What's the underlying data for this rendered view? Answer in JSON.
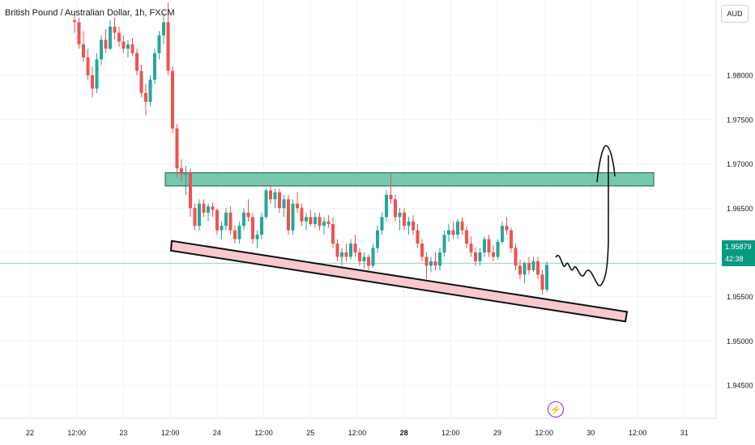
{
  "header": {
    "title": "British Pound / Australian Dollar, 1h, FXCM",
    "currency_button": "AUD"
  },
  "price_badge": {
    "price": "1.95879",
    "countdown": "42:38"
  },
  "event_icon": "lightning-icon",
  "colors": {
    "up": "#26a69a",
    "down": "#ef5350",
    "resistance_zone": "#76c7ad",
    "support_line": "#f8c8cf",
    "grid": "#f0f3fa",
    "price_line": "#089981"
  },
  "chart_data": {
    "type": "candlestick",
    "title": "British Pound / Australian Dollar, 1h, FXCM",
    "ylim": [
      1.941,
      1.9885
    ],
    "y_ticks": [
      "1.98000",
      "1.97500",
      "1.97000",
      "1.96500",
      "1.96000",
      "1.95500",
      "1.95000",
      "1.94500"
    ],
    "x_ticks": [
      "22",
      "12:00",
      "23",
      "12:00",
      "24",
      "12:00",
      "25",
      "12:00",
      "28",
      "12:00",
      "29",
      "12:00",
      "30",
      "12:00",
      "31"
    ],
    "current_price": 1.95879,
    "resistance_zone": [
      1.9675,
      1.969
    ],
    "support_line": {
      "start": 1.9613,
      "end": 1.9533
    },
    "projection": "bounce up to resistance zone",
    "candles": [
      [
        1.9862,
        1.9873,
        1.9848,
        1.986
      ],
      [
        1.986,
        1.9865,
        1.983,
        1.9835
      ],
      [
        1.9835,
        1.985,
        1.9815,
        1.982
      ],
      [
        1.982,
        1.983,
        1.9795,
        1.98
      ],
      [
        1.98,
        1.981,
        1.9775,
        1.9785
      ],
      [
        1.9785,
        1.9825,
        1.978,
        1.9818
      ],
      [
        1.9818,
        1.9845,
        1.9812,
        1.984
      ],
      [
        1.984,
        1.9852,
        1.9825,
        1.983
      ],
      [
        1.983,
        1.9862,
        1.9828,
        1.9855
      ],
      [
        1.9855,
        1.9865,
        1.984,
        1.9848
      ],
      [
        1.9848,
        1.9855,
        1.9832,
        1.9838
      ],
      [
        1.9838,
        1.9845,
        1.9825,
        1.983
      ],
      [
        1.983,
        1.984,
        1.982,
        1.9835
      ],
      [
        1.9835,
        1.9842,
        1.9822,
        1.9825
      ],
      [
        1.9825,
        1.983,
        1.98,
        1.9805
      ],
      [
        1.9805,
        1.9812,
        1.9775,
        1.978
      ],
      [
        1.978,
        1.979,
        1.9755,
        1.977
      ],
      [
        1.977,
        1.98,
        1.9765,
        1.9795
      ],
      [
        1.9795,
        1.983,
        1.979,
        1.9825
      ],
      [
        1.9825,
        1.985,
        1.9818,
        1.9845
      ],
      [
        1.9845,
        1.987,
        1.9835,
        1.986
      ],
      [
        1.986,
        1.9882,
        1.98,
        1.9805
      ],
      [
        1.9805,
        1.981,
        1.9735,
        1.974
      ],
      [
        1.974,
        1.9745,
        1.9685,
        1.9695
      ],
      [
        1.9695,
        1.9705,
        1.968,
        1.9688
      ],
      [
        1.9688,
        1.9698,
        1.9665,
        1.969
      ],
      [
        1.969,
        1.9695,
        1.964,
        1.965
      ],
      [
        1.965,
        1.9655,
        1.9625,
        1.963
      ],
      [
        1.963,
        1.966,
        1.9625,
        1.9655
      ],
      [
        1.9655,
        1.966,
        1.964,
        1.9645
      ],
      [
        1.9645,
        1.9655,
        1.9635,
        1.9652
      ],
      [
        1.9652,
        1.9656,
        1.964,
        1.9648
      ],
      [
        1.9648,
        1.965,
        1.962,
        1.9625
      ],
      [
        1.9625,
        1.9635,
        1.9615,
        1.963
      ],
      [
        1.963,
        1.965,
        1.9625,
        1.9645
      ],
      [
        1.9645,
        1.9652,
        1.962,
        1.9625
      ],
      [
        1.9625,
        1.963,
        1.961,
        1.9615
      ],
      [
        1.9615,
        1.9635,
        1.961,
        1.963
      ],
      [
        1.963,
        1.965,
        1.9625,
        1.9645
      ],
      [
        1.9645,
        1.966,
        1.9635,
        1.964
      ],
      [
        1.964,
        1.9645,
        1.961,
        1.9615
      ],
      [
        1.9615,
        1.9625,
        1.9605,
        1.962
      ],
      [
        1.962,
        1.9645,
        1.9615,
        1.964
      ],
      [
        1.964,
        1.9672,
        1.9638,
        1.967
      ],
      [
        1.967,
        1.9675,
        1.9655,
        1.966
      ],
      [
        1.966,
        1.9672,
        1.965,
        1.9668
      ],
      [
        1.9668,
        1.9672,
        1.9645,
        1.965
      ],
      [
        1.965,
        1.9665,
        1.964,
        1.966
      ],
      [
        1.966,
        1.9665,
        1.962,
        1.9625
      ],
      [
        1.9625,
        1.966,
        1.962,
        1.9655
      ],
      [
        1.9655,
        1.9668,
        1.9645,
        1.965
      ],
      [
        1.965,
        1.9655,
        1.963,
        1.9635
      ],
      [
        1.9635,
        1.9645,
        1.9625,
        1.964
      ],
      [
        1.964,
        1.9648,
        1.963,
        1.9632
      ],
      [
        1.9632,
        1.9645,
        1.9628,
        1.964
      ],
      [
        1.964,
        1.9645,
        1.9625,
        1.963
      ],
      [
        1.963,
        1.964,
        1.962,
        1.9635
      ],
      [
        1.9635,
        1.9642,
        1.9628,
        1.9632
      ],
      [
        1.9632,
        1.964,
        1.9605,
        1.961
      ],
      [
        1.961,
        1.9615,
        1.959,
        1.9595
      ],
      [
        1.9595,
        1.9605,
        1.9585,
        1.96
      ],
      [
        1.96,
        1.961,
        1.959,
        1.9595
      ],
      [
        1.9595,
        1.9615,
        1.9592,
        1.961
      ],
      [
        1.961,
        1.962,
        1.9595,
        1.96
      ],
      [
        1.96,
        1.9605,
        1.9585,
        1.959
      ],
      [
        1.959,
        1.96,
        1.9582,
        1.9595
      ],
      [
        1.9595,
        1.9598,
        1.958,
        1.9585
      ],
      [
        1.9585,
        1.961,
        1.9583,
        1.9605
      ],
      [
        1.9605,
        1.963,
        1.96,
        1.9625
      ],
      [
        1.9625,
        1.9645,
        1.962,
        1.964
      ],
      [
        1.964,
        1.967,
        1.9635,
        1.9665
      ],
      [
        1.9665,
        1.9688,
        1.9655,
        1.966
      ],
      [
        1.966,
        1.9665,
        1.9635,
        1.964
      ],
      [
        1.964,
        1.965,
        1.9625,
        1.9645
      ],
      [
        1.9645,
        1.965,
        1.9625,
        1.963
      ],
      [
        1.963,
        1.964,
        1.962,
        1.9635
      ],
      [
        1.9635,
        1.9642,
        1.962,
        1.9625
      ],
      [
        1.9625,
        1.9632,
        1.9605,
        1.961
      ],
      [
        1.961,
        1.9615,
        1.959,
        1.9595
      ],
      [
        1.9595,
        1.96,
        1.957,
        1.9585
      ],
      [
        1.9585,
        1.9595,
        1.9578,
        1.959
      ],
      [
        1.959,
        1.96,
        1.958,
        1.9585
      ],
      [
        1.9585,
        1.9605,
        1.958,
        1.96
      ],
      [
        1.96,
        1.9625,
        1.9595,
        1.962
      ],
      [
        1.962,
        1.9632,
        1.9612,
        1.9625
      ],
      [
        1.9625,
        1.9635,
        1.9615,
        1.962
      ],
      [
        1.962,
        1.9638,
        1.9615,
        1.9635
      ],
      [
        1.9635,
        1.964,
        1.962,
        1.9625
      ],
      [
        1.9625,
        1.963,
        1.9605,
        1.961
      ],
      [
        1.961,
        1.9618,
        1.9595,
        1.96
      ],
      [
        1.96,
        1.9605,
        1.9585,
        1.959
      ],
      [
        1.959,
        1.9605,
        1.9585,
        1.96
      ],
      [
        1.96,
        1.9618,
        1.9595,
        1.9615
      ],
      [
        1.9615,
        1.962,
        1.9595,
        1.96
      ],
      [
        1.96,
        1.9608,
        1.959,
        1.9595
      ],
      [
        1.9595,
        1.9615,
        1.9592,
        1.9612
      ],
      [
        1.9612,
        1.9635,
        1.961,
        1.963
      ],
      [
        1.963,
        1.964,
        1.962,
        1.9625
      ],
      [
        1.9625,
        1.9628,
        1.96,
        1.9605
      ],
      [
        1.9605,
        1.961,
        1.958,
        1.9585
      ],
      [
        1.9585,
        1.9592,
        1.957,
        1.9575
      ],
      [
        1.9575,
        1.959,
        1.9565,
        1.9588
      ],
      [
        1.9588,
        1.9595,
        1.9575,
        1.958
      ],
      [
        1.958,
        1.9595,
        1.9578,
        1.959
      ],
      [
        1.959,
        1.9595,
        1.957,
        1.9575
      ],
      [
        1.9575,
        1.958,
        1.9552,
        1.9558
      ],
      [
        1.9558,
        1.959,
        1.9555,
        1.9586
      ]
    ]
  }
}
